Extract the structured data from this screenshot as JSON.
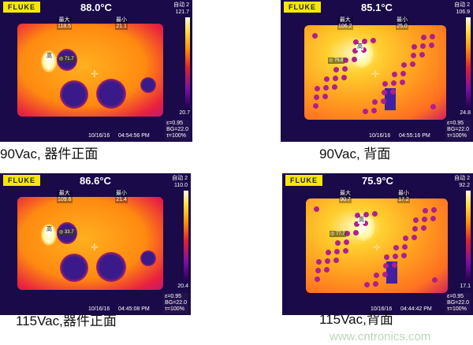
{
  "images": [
    {
      "brand": "FLUKE",
      "center_temp": "88.0°C",
      "mode": "自动 2",
      "scale_max": "121.7",
      "scale_min": "20.7",
      "max_label": "最大",
      "max_value": "118.5",
      "min_label": "最小",
      "min_value": "21.1",
      "hot_label": "高",
      "spot_value": "71.7",
      "date": "10/16/16",
      "time": "04:54:56 PM",
      "emissivity": "ε=0.95",
      "bg": "BG=22.0",
      "tau": "τ=100%",
      "caption": "90Vac, 器件正面"
    },
    {
      "brand": "FLUKE",
      "center_temp": "85.1°C",
      "mode": "自动 2",
      "scale_max": "106.9",
      "scale_min": "24.8",
      "max_label": "最大",
      "max_value": "106.2",
      "min_label": "最小",
      "min_value": "25.0",
      "hot_label": "高",
      "spot_value": "76.8",
      "date": "10/16/16",
      "time": "04:55:16 PM",
      "emissivity": "ε=0.95",
      "bg": "BG=22.0",
      "tau": "τ=100%",
      "caption": "90Vac, 背面"
    },
    {
      "brand": "FLUKE",
      "center_temp": "86.6°C",
      "mode": "自动 2",
      "scale_max": "110.0",
      "scale_min": "20.4",
      "max_label": "最大",
      "max_value": "109.6",
      "min_label": "最小",
      "min_value": "21.4",
      "hot_label": "高",
      "spot_value": "33.7",
      "date": "10/16/16",
      "time": "04:45:08 PM",
      "emissivity": "ε=0.95",
      "bg": "BG=22.0",
      "tau": "τ=100%",
      "caption": "115Vac,器件正面"
    },
    {
      "brand": "FLUKE",
      "center_temp": "75.9°C",
      "mode": "自动 2",
      "scale_max": "92.2",
      "scale_min": "17.1",
      "max_label": "最大",
      "max_value": "90.7",
      "min_label": "最小",
      "min_value": "17.2",
      "hot_label": "高",
      "spot_value": "77.7",
      "date": "10/16/16",
      "time": "04:44:42 PM",
      "emissivity": "ε=0.95",
      "bg": "BG=22.0",
      "tau": "τ=100%",
      "caption": "115Vac,背面"
    }
  ],
  "watermark": "www.cntronics.com"
}
